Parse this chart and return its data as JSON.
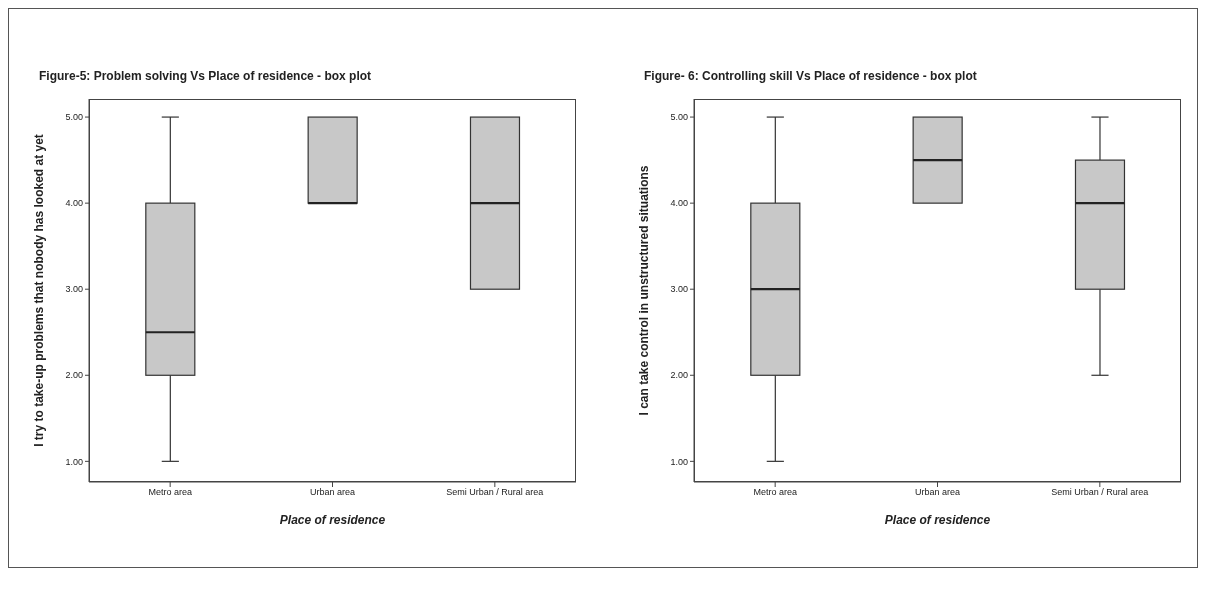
{
  "chart_data": [
    {
      "type": "box",
      "title": "Figure-5: Problem solving Vs Place of residence - box plot",
      "xlabel": "Place of residence",
      "ylabel": "I try to take-up problems that nobody has looked at yet",
      "categories": [
        "Metro area",
        "Urban area",
        "Semi Urban / Rural area"
      ],
      "color": "#c8c8c8",
      "boxes": [
        {
          "low": 1,
          "q1": 2,
          "median": 2.5,
          "q3": 4,
          "high": 5
        },
        {
          "low": 4,
          "q1": 4,
          "median": 4,
          "q3": 5,
          "high": 5
        },
        {
          "low": 3,
          "q1": 3,
          "median": 4,
          "q3": 5,
          "high": 5
        }
      ],
      "ylim": [
        0.76,
        5.21
      ],
      "yticks": [
        {
          "value": 1,
          "label": "1.00"
        },
        {
          "value": 2,
          "label": "2.00"
        },
        {
          "value": 3,
          "label": "3.00"
        },
        {
          "value": 4,
          "label": "4.00"
        },
        {
          "value": 5,
          "label": "5.00"
        }
      ],
      "grid": false,
      "legend": false
    },
    {
      "type": "box",
      "title": "Figure- 6: Controlling skill Vs Place of residence - box plot",
      "xlabel": "Place of residence",
      "ylabel": "I can take control in unstructured situations",
      "categories": [
        "Metro area",
        "Urban area",
        "Semi Urban / Rural area"
      ],
      "color": "#c8c8c8",
      "boxes": [
        {
          "low": 1,
          "q1": 2,
          "median": 3,
          "q3": 4,
          "high": 5
        },
        {
          "low": 4,
          "q1": 4,
          "median": 4.5,
          "q3": 5,
          "high": 5
        },
        {
          "low": 2,
          "q1": 3,
          "median": 4,
          "q3": 4.5,
          "high": 5
        }
      ],
      "ylim": [
        0.76,
        5.21
      ],
      "yticks": [
        {
          "value": 1,
          "label": "1.00"
        },
        {
          "value": 2,
          "label": "2.00"
        },
        {
          "value": 3,
          "label": "3.00"
        },
        {
          "value": 4,
          "label": "4.00"
        },
        {
          "value": 5,
          "label": "5.00"
        }
      ],
      "grid": false,
      "legend": false
    }
  ]
}
